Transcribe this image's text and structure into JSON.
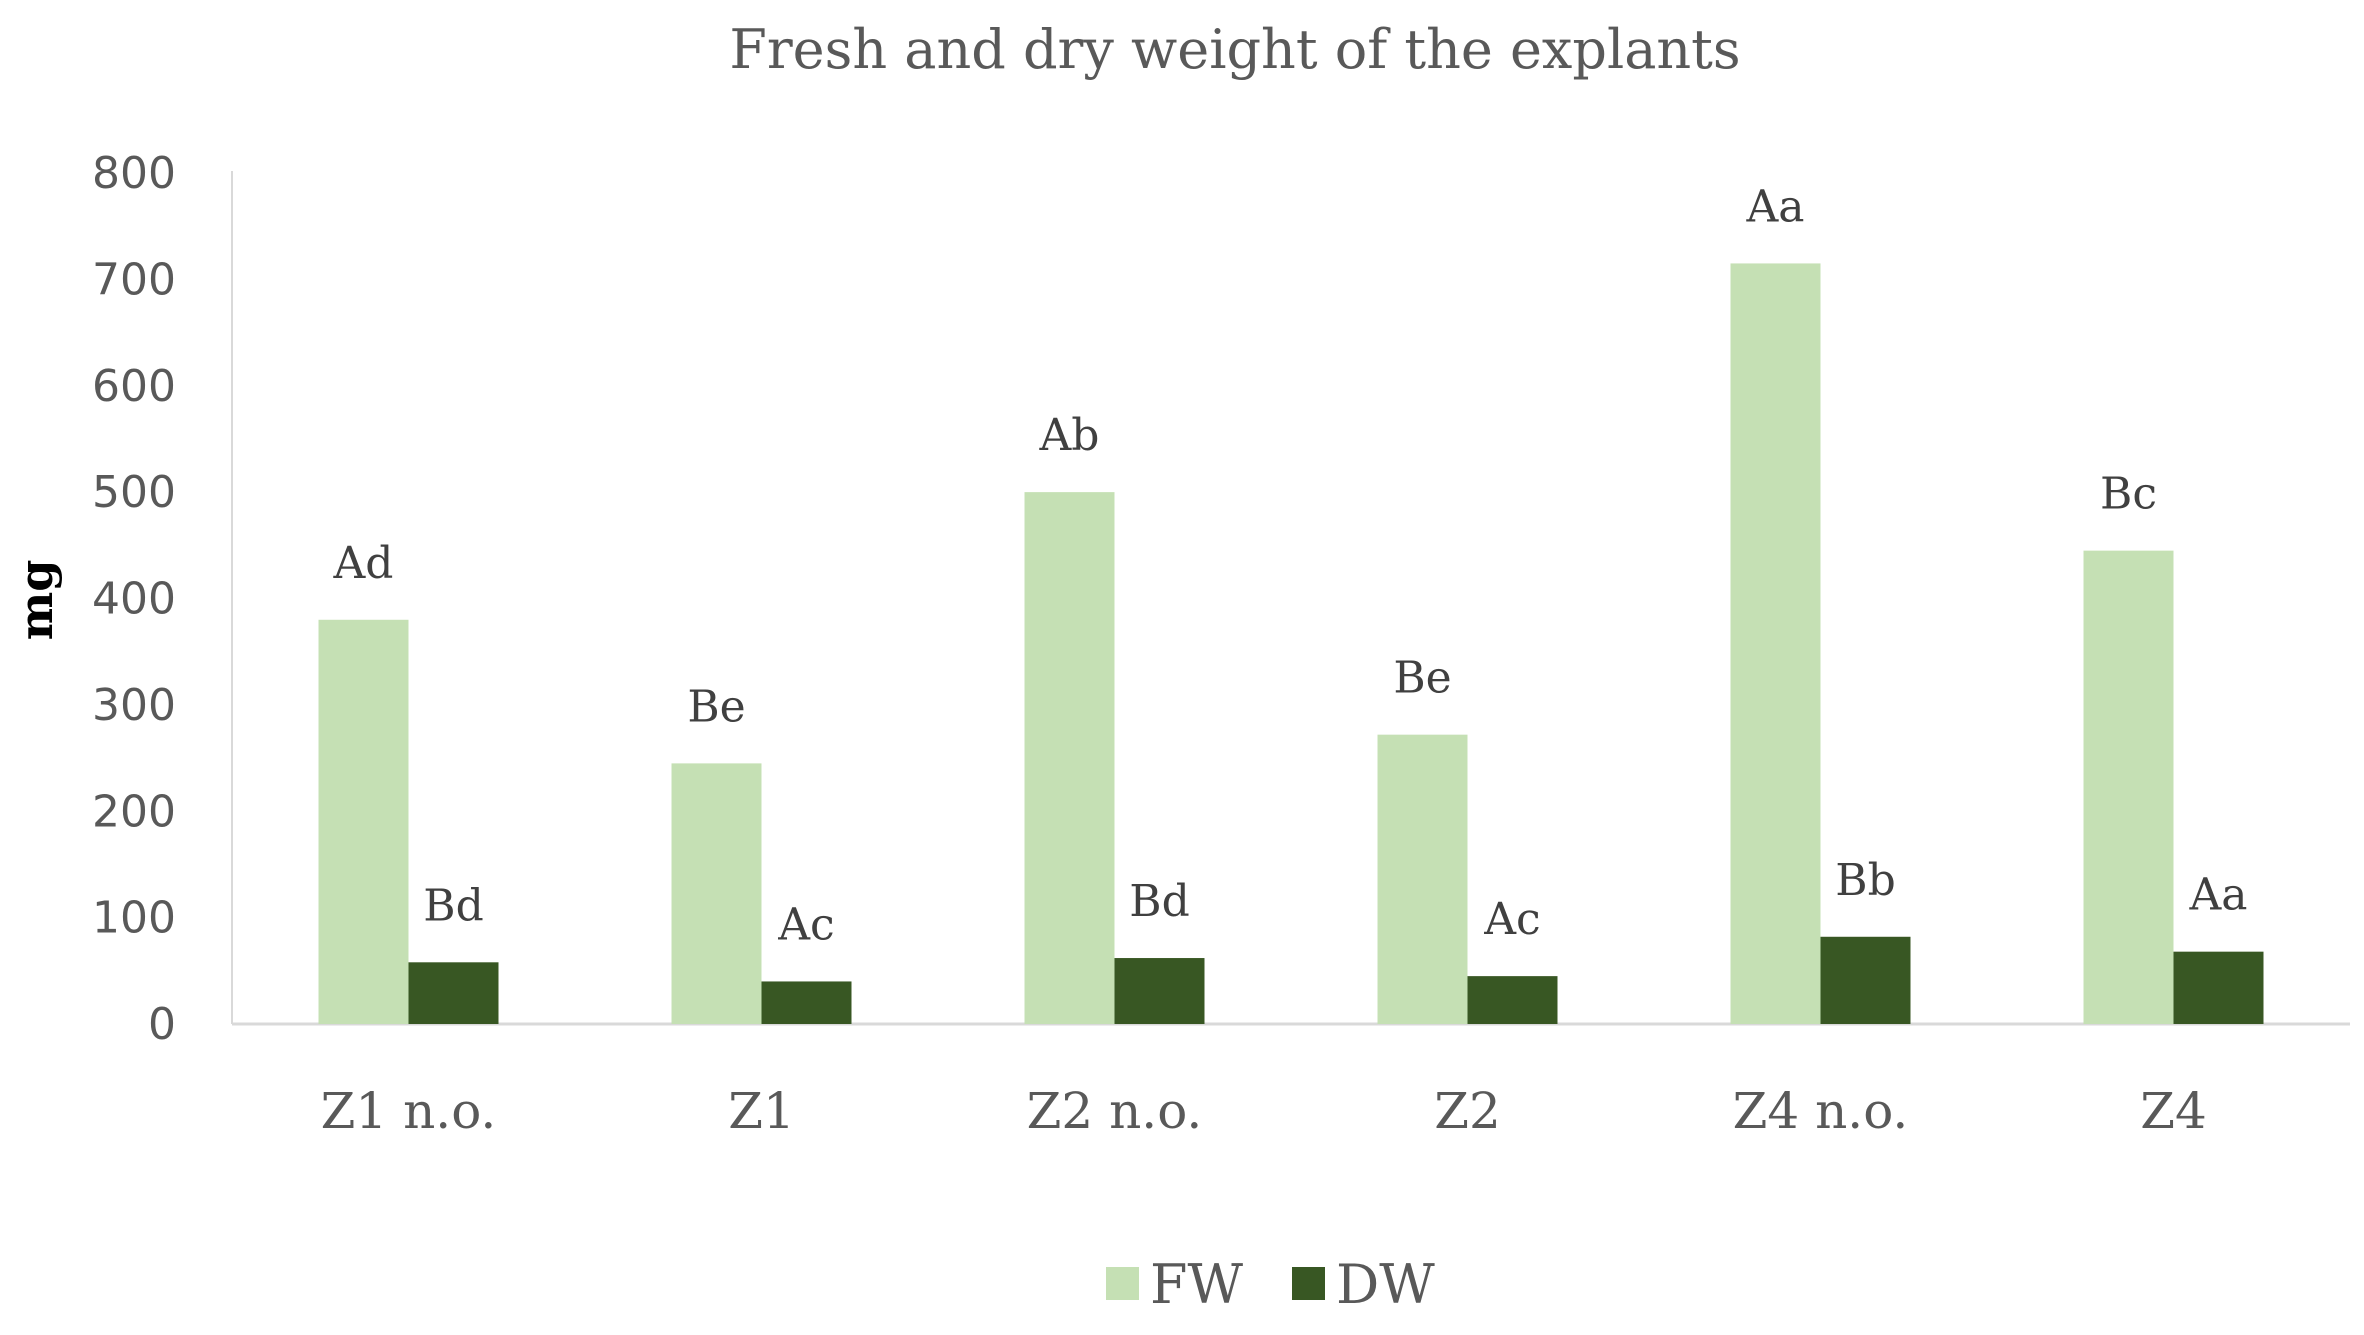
{
  "chart_data": {
    "type": "bar",
    "title": "Fresh and dry weight of the explants",
    "ylabel": "mg",
    "xlabel": "",
    "ylim": [
      0,
      800
    ],
    "yticks": [
      "0",
      "100",
      "200",
      "300",
      "400",
      "500",
      "600",
      "700",
      "800"
    ],
    "categories": [
      "Z1 n.o.",
      "Z1",
      "Z2 n.o.",
      "Z2",
      "Z4 n.o.",
      "Z4"
    ],
    "series": [
      {
        "name": "FW",
        "color": "#c5e0b4",
        "values": [
          380,
          245,
          500,
          272,
          715,
          445
        ],
        "labels": [
          "Ad",
          "Be",
          "Ab",
          "Be",
          "Aa",
          "Bc"
        ]
      },
      {
        "name": "DW",
        "color": "#385723",
        "values": [
          58,
          40,
          62,
          45,
          82,
          68
        ],
        "labels": [
          "Bd",
          "Ac",
          "Bd",
          "Ac",
          "Bb",
          "Aa"
        ]
      }
    ],
    "grid": false,
    "legend": "bottom"
  }
}
